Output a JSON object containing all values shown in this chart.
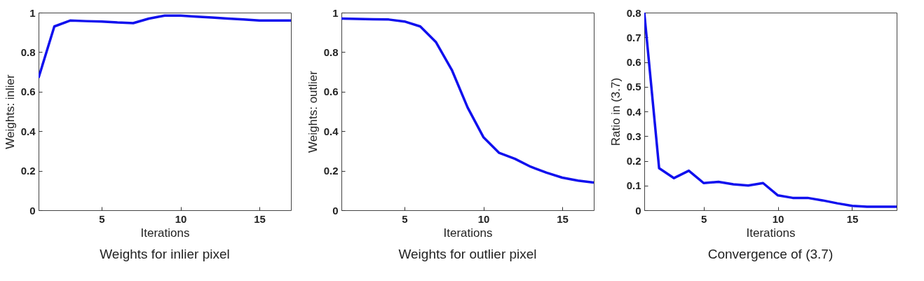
{
  "chart_data": [
    {
      "type": "line",
      "title": "Weights for inlier pixel",
      "xlabel": "Iterations",
      "ylabel": "Weights: inlier",
      "x": [
        1,
        2,
        3,
        4,
        5,
        6,
        7,
        8,
        9,
        10,
        11,
        12,
        13,
        14,
        15,
        16,
        17
      ],
      "series": [
        {
          "color": "#1010ee",
          "values": [
            0.67,
            0.93,
            0.96,
            0.957,
            0.955,
            0.95,
            0.947,
            0.97,
            0.985,
            0.985,
            0.98,
            0.975,
            0.97,
            0.965,
            0.96,
            0.96,
            0.96
          ]
        }
      ],
      "xlim": [
        1,
        17
      ],
      "xticks": [
        5,
        10,
        15
      ],
      "ylim": [
        0,
        1
      ],
      "yticks": [
        0,
        0.2,
        0.4,
        0.6,
        0.8,
        1
      ],
      "grid": false
    },
    {
      "type": "line",
      "title": "Weights for outlier pixel",
      "xlabel": "Iterations",
      "ylabel": "Weights: outlier",
      "x": [
        1,
        2,
        3,
        4,
        5,
        6,
        7,
        8,
        9,
        10,
        11,
        12,
        13,
        14,
        15,
        16,
        17
      ],
      "series": [
        {
          "color": "#1010ee",
          "values": [
            0.97,
            0.968,
            0.966,
            0.965,
            0.955,
            0.93,
            0.85,
            0.71,
            0.52,
            0.37,
            0.29,
            0.26,
            0.22,
            0.19,
            0.165,
            0.15,
            0.14
          ]
        }
      ],
      "xlim": [
        1,
        17
      ],
      "xticks": [
        5,
        10,
        15
      ],
      "ylim": [
        0,
        1
      ],
      "yticks": [
        0,
        0.2,
        0.4,
        0.6,
        0.8,
        1
      ],
      "grid": false
    },
    {
      "type": "line",
      "title": "Convergence of (3.7)",
      "xlabel": "Iterations",
      "ylabel": "Ratio in (3.7)",
      "x": [
        1,
        2,
        3,
        4,
        5,
        6,
        7,
        8,
        9,
        10,
        11,
        12,
        13,
        14,
        15,
        16,
        17,
        18
      ],
      "series": [
        {
          "color": "#1010ee",
          "values": [
            0.8,
            0.17,
            0.13,
            0.16,
            0.11,
            0.115,
            0.105,
            0.1,
            0.11,
            0.06,
            0.05,
            0.05,
            0.04,
            0.028,
            0.018,
            0.014,
            0.014,
            0.014
          ]
        }
      ],
      "xlim": [
        1,
        18
      ],
      "xticks": [
        5,
        10,
        15
      ],
      "ylim": [
        0,
        0.8
      ],
      "yticks": [
        0,
        0.1,
        0.2,
        0.3,
        0.4,
        0.5,
        0.6,
        0.7,
        0.8
      ],
      "grid": false
    }
  ]
}
